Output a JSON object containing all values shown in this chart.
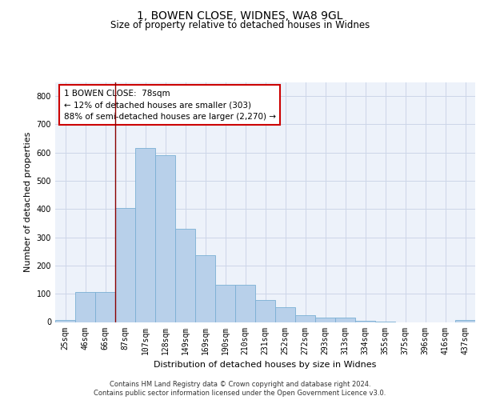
{
  "title1": "1, BOWEN CLOSE, WIDNES, WA8 9GL",
  "title2": "Size of property relative to detached houses in Widnes",
  "xlabel": "Distribution of detached houses by size in Widnes",
  "ylabel": "Number of detached properties",
  "categories": [
    "25sqm",
    "46sqm",
    "66sqm",
    "87sqm",
    "107sqm",
    "128sqm",
    "149sqm",
    "169sqm",
    "190sqm",
    "210sqm",
    "231sqm",
    "252sqm",
    "272sqm",
    "293sqm",
    "313sqm",
    "334sqm",
    "355sqm",
    "375sqm",
    "396sqm",
    "416sqm",
    "437sqm"
  ],
  "values": [
    7,
    105,
    105,
    405,
    615,
    590,
    330,
    238,
    133,
    133,
    78,
    53,
    25,
    15,
    17,
    5,
    1,
    0,
    0,
    0,
    8
  ],
  "bar_color": "#b8d0ea",
  "bar_edge_color": "#7aafd4",
  "vline_x": 3.0,
  "vline_color": "#8b0000",
  "annotation_lines": [
    "1 BOWEN CLOSE:  78sqm",
    "← 12% of detached houses are smaller (303)",
    "88% of semi-detached houses are larger (2,270) →"
  ],
  "annotation_box_color": "#cc0000",
  "ylim": [
    0,
    850
  ],
  "yticks": [
    0,
    100,
    200,
    300,
    400,
    500,
    600,
    700,
    800
  ],
  "grid_color": "#ccd6e8",
  "background_color": "#edf2fa",
  "footer": [
    "Contains HM Land Registry data © Crown copyright and database right 2024.",
    "Contains public sector information licensed under the Open Government Licence v3.0."
  ],
  "title1_fontsize": 10,
  "title2_fontsize": 8.5,
  "xlabel_fontsize": 8,
  "ylabel_fontsize": 8,
  "tick_fontsize": 7,
  "annotation_fontsize": 7.5,
  "footer_fontsize": 6
}
